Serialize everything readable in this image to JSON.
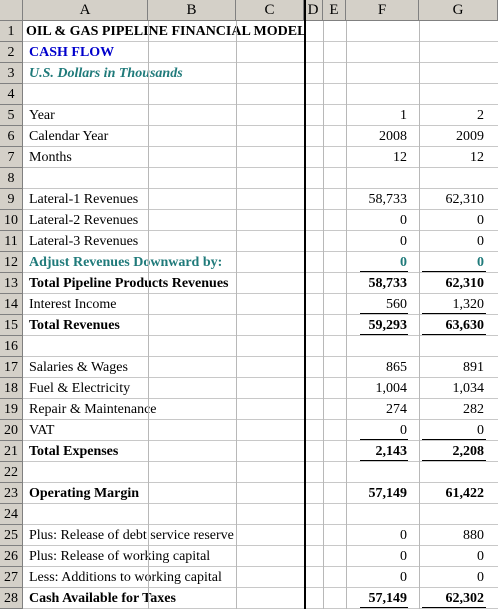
{
  "columns": [
    "A",
    "B",
    "C",
    "D",
    "E",
    "F",
    "G"
  ],
  "rows": [
    {
      "n": "1",
      "label": "OIL & GAS PIPELINE FINANCIAL MODEL",
      "style": "bold",
      "f": "",
      "g": ""
    },
    {
      "n": "2",
      "label": "CASH FLOW",
      "style": "bold blue",
      "f": "",
      "g": ""
    },
    {
      "n": "3",
      "label": "U.S. Dollars in Thousands",
      "style": "bold ital teal",
      "f": "",
      "g": ""
    },
    {
      "n": "4",
      "label": "",
      "style": "",
      "f": "",
      "g": ""
    },
    {
      "n": "5",
      "label": "Year",
      "style": "",
      "f": "1",
      "g": "2"
    },
    {
      "n": "6",
      "label": "Calendar Year",
      "style": "",
      "f": "2008",
      "g": "2009"
    },
    {
      "n": "7",
      "label": "Months",
      "style": "",
      "f": "12",
      "g": "12"
    },
    {
      "n": "8",
      "label": "",
      "style": "",
      "f": "",
      "g": ""
    },
    {
      "n": "9",
      "label": "Lateral-1 Revenues",
      "style": "",
      "f": "58,733",
      "g": "62,310"
    },
    {
      "n": "10",
      "label": "Lateral-2 Revenues",
      "style": "",
      "f": "0",
      "g": "0"
    },
    {
      "n": "11",
      "label": "Lateral-3 Revenues",
      "style": "",
      "f": "0",
      "g": "0"
    },
    {
      "n": "12",
      "label": "Adjust Revenues Downward by:",
      "style": "bold teal",
      "f": "0",
      "g": "0"
    },
    {
      "n": "13",
      "label": "Total Pipeline Products Revenues",
      "style": "bold",
      "f": "58,733",
      "g": "62,310"
    },
    {
      "n": "14",
      "label": "Interest Income",
      "style": "",
      "f": "560",
      "g": "1,320"
    },
    {
      "n": "15",
      "label": "Total Revenues",
      "style": "bold",
      "f": "59,293",
      "g": "63,630"
    },
    {
      "n": "16",
      "label": "",
      "style": "",
      "f": "",
      "g": ""
    },
    {
      "n": "17",
      "label": "Salaries & Wages",
      "style": "",
      "f": "865",
      "g": "891"
    },
    {
      "n": "18",
      "label": "Fuel & Electricity",
      "style": "",
      "f": "1,004",
      "g": "1,034"
    },
    {
      "n": "19",
      "label": "Repair & Maintenance",
      "style": "",
      "f": "274",
      "g": "282"
    },
    {
      "n": "20",
      "label": "VAT",
      "style": "",
      "f": "0",
      "g": "0"
    },
    {
      "n": "21",
      "label": "Total Expenses",
      "style": "bold",
      "f": "2,143",
      "g": "2,208"
    },
    {
      "n": "22",
      "label": "",
      "style": "",
      "f": "",
      "g": ""
    },
    {
      "n": "23",
      "label": "Operating Margin",
      "style": "bold",
      "f": "57,149",
      "g": "61,422"
    },
    {
      "n": "24",
      "label": "",
      "style": "",
      "f": "",
      "g": ""
    },
    {
      "n": "25",
      "label": "Plus: Release of debt service reserve",
      "style": "",
      "f": "0",
      "g": "880"
    },
    {
      "n": "26",
      "label": "Plus: Release of working capital",
      "style": "",
      "f": "0",
      "g": "0"
    },
    {
      "n": "27",
      "label": "Less: Additions to working capital",
      "style": "",
      "f": "0",
      "g": "0"
    },
    {
      "n": "28",
      "label": "Cash Available for Taxes",
      "style": "bold",
      "f": "57,149",
      "g": "62,302"
    }
  ],
  "colors": {
    "blue": "#0000cc",
    "teal": "#1f7a7a",
    "header_bg": "#d4d0c8"
  }
}
